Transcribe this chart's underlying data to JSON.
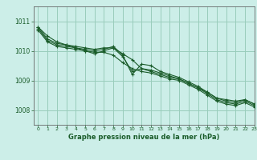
{
  "xlabel": "Graphe pression niveau de la mer (hPa)",
  "xlim": [
    -0.5,
    23
  ],
  "ylim": [
    1007.5,
    1011.5
  ],
  "yticks": [
    1008,
    1009,
    1010,
    1011
  ],
  "xticks": [
    0,
    1,
    2,
    3,
    4,
    5,
    6,
    7,
    8,
    9,
    10,
    11,
    12,
    13,
    14,
    15,
    16,
    17,
    18,
    19,
    20,
    21,
    22,
    23
  ],
  "bg_color": "#cceee8",
  "grid_color": "#99ccbb",
  "line_color": "#1a5c2a",
  "series": [
    [
      1010.8,
      1010.5,
      1010.3,
      1010.2,
      1010.1,
      1010.0,
      1009.9,
      1010.0,
      1010.1,
      1009.9,
      1009.7,
      1009.4,
      1009.3,
      1009.2,
      1009.1,
      1009.05,
      1008.9,
      1008.75,
      1008.6,
      1008.4,
      1008.35,
      1008.3,
      1008.35,
      1008.2
    ],
    [
      1010.8,
      1010.4,
      1010.25,
      1010.2,
      1010.15,
      1010.1,
      1010.05,
      1010.1,
      1010.1,
      1009.8,
      1009.3,
      1009.4,
      1009.35,
      1009.25,
      1009.15,
      1009.05,
      1008.9,
      1008.75,
      1008.55,
      1008.35,
      1008.25,
      1008.2,
      1008.3,
      1008.15
    ],
    [
      1010.75,
      1010.35,
      1010.2,
      1010.15,
      1010.1,
      1010.05,
      1010.0,
      1010.05,
      1010.15,
      1009.85,
      1009.2,
      1009.55,
      1009.5,
      1009.3,
      1009.2,
      1009.1,
      1008.95,
      1008.8,
      1008.6,
      1008.4,
      1008.3,
      1008.25,
      1008.35,
      1008.2
    ],
    [
      1010.7,
      1010.3,
      1010.15,
      1010.1,
      1010.05,
      1010.0,
      1009.95,
      1009.95,
      1009.85,
      1009.6,
      1009.4,
      1009.3,
      1009.25,
      1009.15,
      1009.05,
      1009.0,
      1008.85,
      1008.7,
      1008.5,
      1008.3,
      1008.2,
      1008.15,
      1008.25,
      1008.1
    ]
  ]
}
